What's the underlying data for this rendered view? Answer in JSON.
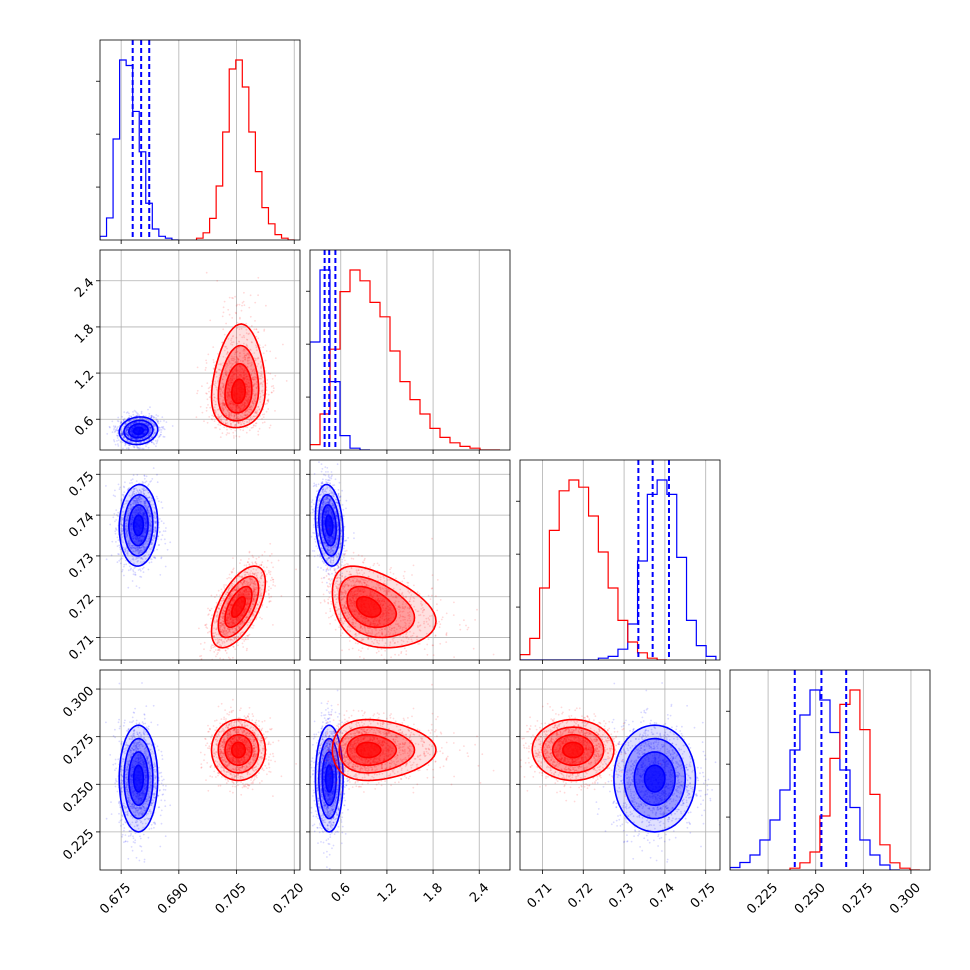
{
  "chart_data": {
    "type": "corner",
    "description_colors": {
      "series_a": "#0000ff",
      "series_b": "#ff0000"
    },
    "grid": true,
    "variables": [
      {
        "ticks": [
          "0.675",
          "0.690",
          "0.705",
          "0.720"
        ],
        "tick_values": [
          0.675,
          0.69,
          0.705,
          0.72
        ],
        "range": [
          0.6695,
          0.7215
        ]
      },
      {
        "ticks": [
          "0.6",
          "1.2",
          "1.8",
          "2.4"
        ],
        "tick_values": [
          0.6,
          1.2,
          1.8,
          2.4
        ],
        "range": [
          0.2,
          2.8
        ]
      },
      {
        "ticks": [
          "0.71",
          "0.72",
          "0.73",
          "0.74",
          "0.75"
        ],
        "tick_values": [
          0.71,
          0.72,
          0.73,
          0.74,
          0.75
        ],
        "range": [
          0.7045,
          0.7535
        ]
      },
      {
        "ticks": [
          "0.225",
          "0.250",
          "0.275",
          "0.300"
        ],
        "tick_values": [
          0.225,
          0.25,
          0.275,
          0.3
        ],
        "range": [
          0.205,
          0.31
        ]
      }
    ],
    "series": [
      {
        "color": "#0000ff",
        "mean": [
          0.6795,
          0.45,
          0.7375,
          0.253
        ],
        "std": [
          0.0025,
          0.09,
          0.005,
          0.014
        ],
        "corr": {
          "0-1": 0.1,
          "0-2": 0.05,
          "0-3": 0.0,
          "1-2": -0.2,
          "1-3": 0.0,
          "2-3": 0.0
        },
        "quantiles": [
          [
            0.678,
            0.6802,
            0.6823
          ],
          [
            0.39,
            0.45,
            0.53
          ],
          [
            0.7335,
            0.737,
            0.741
          ],
          [
            0.239,
            0.253,
            0.266
          ]
        ],
        "hist": [
          [
            0.6706,
            0.6712,
            0.6735,
            0.6771,
            0.6806,
            0.6841,
            0.6871,
            0.6898
          ],
          [
            0.4,
            0.55,
            0.62,
            0.98,
            0.73,
            0.18,
            0.08,
            0.02
          ]
        ]
      },
      {
        "color": "#ff0000",
        "mean": [
          0.7055,
          1.0,
          0.7175,
          0.268
        ],
        "std": [
          0.0035,
          0.35,
          0.005,
          0.008
        ],
        "corr": {
          "0-1": 0.1,
          "0-2": 0.6,
          "0-3": 0.0,
          "1-2": -0.35,
          "1-3": 0.0,
          "2-3": 0.0
        },
        "hist": []
      }
    ],
    "histograms": [
      {
        "blue": {
          "edges": [
            0.6695,
            0.6712,
            0.6729,
            0.6746,
            0.6763,
            0.678,
            0.6797,
            0.6814,
            0.6831,
            0.6848,
            0.6865,
            0.6882,
            0.6899
          ],
          "counts": [
            2,
            12,
            55,
            98,
            95,
            70,
            48,
            20,
            6,
            2,
            1,
            0
          ]
        },
        "red": {
          "edges": [
            0.6946,
            0.6963,
            0.698,
            0.6997,
            0.7014,
            0.7031,
            0.7048,
            0.7065,
            0.7082,
            0.7099,
            0.7116,
            0.7133,
            0.715,
            0.7167,
            0.7184,
            0.7201
          ],
          "counts": [
            1,
            4,
            12,
            30,
            60,
            95,
            100,
            85,
            60,
            38,
            18,
            9,
            3,
            1,
            0
          ]
        }
      },
      {
        "blue": {
          "edges": [
            0.2,
            0.33,
            0.46,
            0.59,
            0.72,
            0.85,
            0.98
          ],
          "counts": [
            60,
            100,
            38,
            8,
            1,
            0
          ]
        },
        "red": {
          "edges": [
            0.2,
            0.33,
            0.46,
            0.59,
            0.72,
            0.85,
            0.98,
            1.11,
            1.24,
            1.37,
            1.5,
            1.63,
            1.76,
            1.89,
            2.02,
            2.15,
            2.28,
            2.41,
            2.54,
            2.67
          ],
          "counts": [
            3,
            20,
            56,
            88,
            100,
            94,
            82,
            74,
            55,
            38,
            28,
            20,
            12,
            7,
            4,
            2,
            1,
            0,
            0
          ]
        }
      },
      {
        "blue": {
          "edges": [
            0.7045,
            0.7069,
            0.7093,
            0.7117,
            0.7141,
            0.7165,
            0.7189,
            0.7213,
            0.7237,
            0.7261,
            0.7285,
            0.7309,
            0.7333,
            0.7357,
            0.7381,
            0.7405,
            0.7429,
            0.7453,
            0.7477,
            0.7501,
            0.7525
          ],
          "counts": [
            0,
            0,
            0,
            0,
            0,
            0,
            0,
            0,
            1,
            2,
            6,
            20,
            55,
            92,
            100,
            92,
            57,
            22,
            8,
            2
          ]
        },
        "red": {
          "edges": [
            0.7045,
            0.7069,
            0.7093,
            0.7117,
            0.7141,
            0.7165,
            0.7189,
            0.7213,
            0.7237,
            0.7261,
            0.7285,
            0.7309,
            0.7333,
            0.7357,
            0.7381,
            0.7405
          ],
          "counts": [
            3,
            12,
            40,
            72,
            94,
            100,
            96,
            80,
            60,
            40,
            22,
            10,
            4,
            1,
            0
          ]
        }
      },
      {
        "blue": {
          "edges": [
            0.205,
            0.2102,
            0.2155,
            0.2207,
            0.226,
            0.2312,
            0.2365,
            0.2417,
            0.247,
            0.2522,
            0.2575,
            0.2627,
            0.268,
            0.2732,
            0.2785,
            0.2837,
            0.289,
            0.2942
          ],
          "counts": [
            1,
            3,
            6,
            12,
            20,
            32,
            48,
            62,
            72,
            68,
            55,
            40,
            25,
            12,
            6,
            2,
            0
          ]
        },
        "red": {
          "edges": [
            0.2365,
            0.2417,
            0.247,
            0.2522,
            0.2575,
            0.2627,
            0.268,
            0.2732,
            0.2785,
            0.2837,
            0.289,
            0.2942,
            0.2995,
            0.3047
          ],
          "counts": [
            1,
            4,
            10,
            30,
            62,
            92,
            100,
            78,
            42,
            14,
            4,
            1,
            0
          ]
        }
      }
    ]
  }
}
